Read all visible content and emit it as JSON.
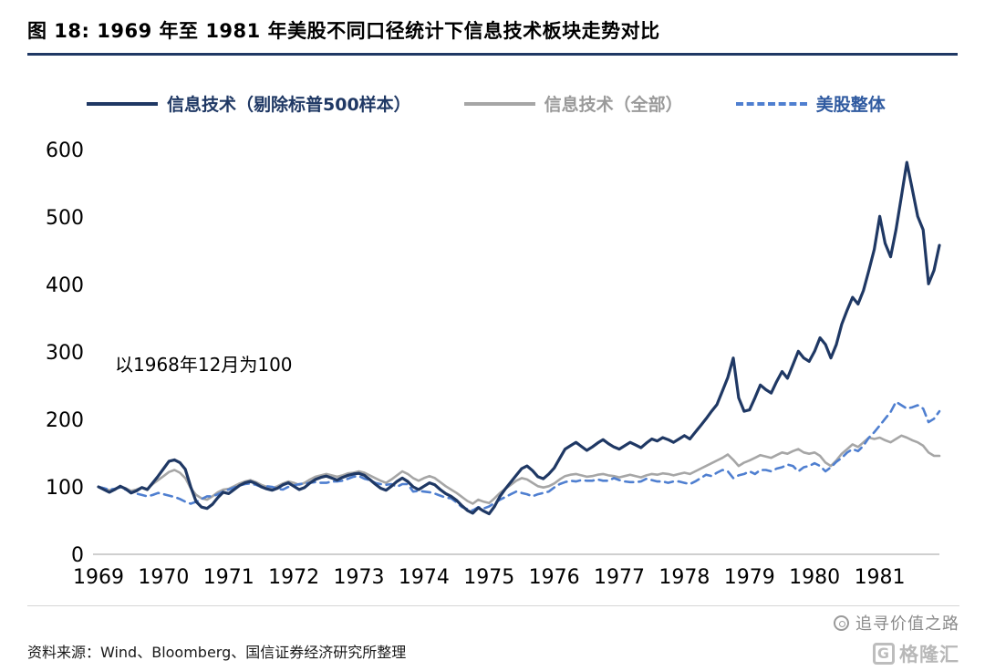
{
  "header": {
    "title": "图 18: 1969 年至 1981 年美股不同口径统计下信息技术板块走势对比"
  },
  "footer": {
    "source": "资料来源：Wind、Bloomberg、国信证券经济研究所整理"
  },
  "watermark": {
    "text": "追寻价值之路",
    "logo_letter": "G",
    "logo_text": "格隆汇"
  },
  "colors": {
    "navy": "#1f3864",
    "gray": "#a6a6a6",
    "blue": "#4f7fd0",
    "axis": "#bfbfbf",
    "title_rule": "#1f3864"
  },
  "chart_data": {
    "type": "line",
    "title": "图 18: 1969 年至 1981 年美股不同口径统计下信息技术板块走势对比",
    "annotation": "以1968年12月为100",
    "x_start_year": 1969,
    "points_per_year": 12,
    "x_tick_labels": [
      "1969",
      "1970",
      "1971",
      "1972",
      "1973",
      "1974",
      "1975",
      "1976",
      "1977",
      "1978",
      "1979",
      "1980",
      "1981"
    ],
    "y_ticks": [
      0,
      100,
      200,
      300,
      400,
      500,
      600
    ],
    "ylim": [
      0,
      600
    ],
    "grid": false,
    "legend_position": "top",
    "series": [
      {
        "name": "信息技术（剔除标普500样本）",
        "color": "#1f3864",
        "style": "solid",
        "values": [
          100,
          96,
          92,
          96,
          101,
          97,
          91,
          94,
          99,
          96,
          106,
          116,
          127,
          138,
          140,
          136,
          126,
          100,
          78,
          70,
          68,
          74,
          84,
          92,
          90,
          96,
          102,
          106,
          108,
          105,
          100,
          97,
          95,
          98,
          103,
          106,
          101,
          96,
          99,
          106,
          111,
          114,
          116,
          113,
          110,
          114,
          117,
          119,
          120,
          117,
          111,
          104,
          98,
          95,
          101,
          108,
          113,
          108,
          100,
          96,
          101,
          106,
          103,
          96,
          90,
          86,
          80,
          72,
          65,
          61,
          69,
          64,
          60,
          71,
          86,
          97,
          107,
          117,
          127,
          131,
          124,
          115,
          112,
          119,
          128,
          142,
          156,
          161,
          166,
          160,
          154,
          159,
          165,
          170,
          164,
          159,
          156,
          161,
          166,
          162,
          158,
          165,
          171,
          168,
          173,
          170,
          166,
          171,
          176,
          171,
          181,
          191,
          201,
          212,
          222,
          242,
          262,
          291,
          232,
          212,
          214,
          232,
          251,
          244,
          239,
          256,
          271,
          261,
          281,
          301,
          291,
          286,
          301,
          321,
          311,
          291,
          311,
          341,
          362,
          381,
          371,
          391,
          421,
          452,
          501,
          461,
          441,
          481,
          531,
          581,
          541,
          501,
          481,
          401,
          421,
          458
        ]
      },
      {
        "name": "信息技术（全部）",
        "color": "#a6a6a6",
        "style": "solid",
        "values": [
          100,
          98,
          95,
          97,
          100,
          98,
          94,
          96,
          99,
          97,
          104,
          110,
          116,
          122,
          125,
          121,
          113,
          98,
          88,
          83,
          81,
          86,
          92,
          96,
          97,
          101,
          105,
          108,
          110,
          107,
          103,
          100,
          98,
          101,
          105,
          108,
          106,
          103,
          106,
          111,
          115,
          117,
          119,
          117,
          115,
          117,
          120,
          121,
          123,
          121,
          117,
          113,
          109,
          106,
          111,
          117,
          123,
          119,
          113,
          109,
          113,
          116,
          113,
          107,
          101,
          96,
          91,
          85,
          79,
          75,
          81,
          78,
          76,
          83,
          91,
          97,
          103,
          109,
          113,
          111,
          106,
          101,
          99,
          101,
          105,
          111,
          116,
          118,
          119,
          117,
          115,
          116,
          118,
          119,
          117,
          116,
          114,
          116,
          118,
          116,
          114,
          117,
          119,
          118,
          120,
          119,
          117,
          119,
          121,
          119,
          123,
          127,
          131,
          135,
          139,
          143,
          148,
          140,
          131,
          136,
          139,
          143,
          147,
          145,
          143,
          147,
          151,
          149,
          153,
          156,
          151,
          149,
          151,
          146,
          136,
          131,
          139,
          149,
          156,
          163,
          159,
          166,
          173,
          171,
          173,
          169,
          166,
          171,
          176,
          173,
          169,
          166,
          161,
          151,
          146,
          146
        ]
      },
      {
        "name": "美股整体",
        "color": "#4f7fd0",
        "style": "dashed",
        "values": [
          100,
          98,
          96,
          97,
          99,
          96,
          92,
          90,
          88,
          86,
          88,
          91,
          89,
          87,
          85,
          82,
          78,
          75,
          78,
          82,
          86,
          86,
          89,
          93,
          96,
          99,
          102,
          104,
          105,
          103,
          100,
          101,
          100,
          97,
          96,
          100,
          102,
          104,
          105,
          106,
          107,
          106,
          106,
          108,
          108,
          109,
          112,
          115,
          116,
          112,
          110,
          106,
          104,
          103,
          104,
          100,
          104,
          104,
          93,
          94,
          93,
          92,
          90,
          87,
          84,
          83,
          77,
          70,
          67,
          65,
          70,
          68,
          71,
          76,
          81,
          85,
          89,
          93,
          91,
          89,
          86,
          89,
          91,
          93,
          99,
          104,
          107,
          109,
          108,
          110,
          109,
          109,
          111,
          109,
          109,
          113,
          110,
          108,
          107,
          107,
          108,
          112,
          110,
          108,
          108,
          106,
          108,
          108,
          106,
          104,
          108,
          113,
          118,
          116,
          121,
          125,
          123,
          113,
          117,
          119,
          123,
          119,
          125,
          125,
          123,
          127,
          129,
          133,
          131,
          123,
          129,
          131,
          135,
          131,
          123,
          129,
          137,
          143,
          151,
          156,
          153,
          161,
          173,
          181,
          191,
          201,
          211,
          226,
          221,
          216,
          218,
          221,
          216,
          196,
          201,
          212
        ]
      }
    ]
  }
}
